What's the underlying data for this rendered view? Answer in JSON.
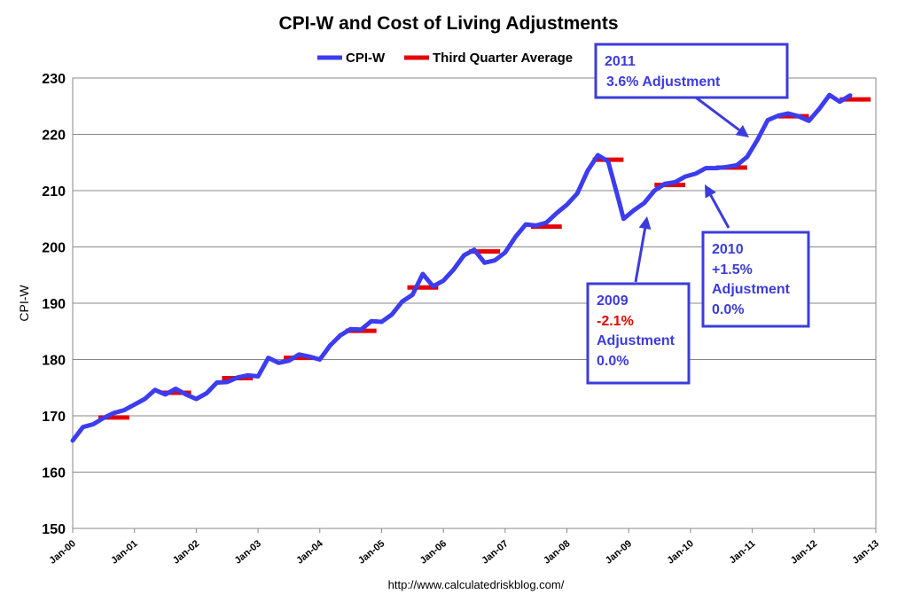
{
  "chart_data": {
    "type": "line",
    "title": "CPI-W and Cost of Living Adjustments",
    "ylabel": "CPI-W",
    "xlabel": "",
    "ylim": [
      150,
      230
    ],
    "yticks": [
      150,
      160,
      170,
      180,
      190,
      200,
      210,
      220,
      230
    ],
    "xticks": [
      "Jan-00",
      "Jan-01",
      "Jan-02",
      "Jan-03",
      "Jan-04",
      "Jan-05",
      "Jan-06",
      "Jan-07",
      "Jan-08",
      "Jan-09",
      "Jan-10",
      "Jan-11",
      "Jan-12",
      "Jan-13"
    ],
    "grid": "horizontal",
    "legend": "top-center",
    "source": "http://www.calculatedriskblog.com/",
    "series": [
      {
        "name": "CPI-W",
        "color": "#3c3cf0",
        "points": [
          [
            "2000-01",
            165.6
          ],
          [
            "2000-03",
            168.0
          ],
          [
            "2000-05",
            168.5
          ],
          [
            "2000-07",
            169.6
          ],
          [
            "2000-09",
            170.5
          ],
          [
            "2000-11",
            171.0
          ],
          [
            "2001-01",
            172.0
          ],
          [
            "2001-03",
            173.0
          ],
          [
            "2001-05",
            174.6
          ],
          [
            "2001-07",
            173.8
          ],
          [
            "2001-09",
            174.8
          ],
          [
            "2001-11",
            173.8
          ],
          [
            "2002-01",
            173.0
          ],
          [
            "2002-03",
            174.0
          ],
          [
            "2002-05",
            175.9
          ],
          [
            "2002-07",
            176.0
          ],
          [
            "2002-09",
            176.8
          ],
          [
            "2002-11",
            177.2
          ],
          [
            "2003-01",
            177.0
          ],
          [
            "2003-03",
            180.3
          ],
          [
            "2003-05",
            179.4
          ],
          [
            "2003-07",
            179.8
          ],
          [
            "2003-09",
            180.9
          ],
          [
            "2003-11",
            180.5
          ],
          [
            "2004-01",
            180.0
          ],
          [
            "2004-03",
            182.5
          ],
          [
            "2004-05",
            184.3
          ],
          [
            "2004-07",
            185.4
          ],
          [
            "2004-09",
            185.3
          ],
          [
            "2004-11",
            186.8
          ],
          [
            "2005-01",
            186.7
          ],
          [
            "2005-03",
            188.0
          ],
          [
            "2005-05",
            190.3
          ],
          [
            "2005-07",
            191.5
          ],
          [
            "2005-09",
            195.2
          ],
          [
            "2005-11",
            193.0
          ],
          [
            "2006-01",
            194.0
          ],
          [
            "2006-03",
            196.0
          ],
          [
            "2006-05",
            198.5
          ],
          [
            "2006-07",
            199.5
          ],
          [
            "2006-09",
            197.2
          ],
          [
            "2006-11",
            197.6
          ],
          [
            "2007-01",
            199.0
          ],
          [
            "2007-03",
            201.8
          ],
          [
            "2007-05",
            204.0
          ],
          [
            "2007-07",
            203.8
          ],
          [
            "2007-09",
            204.3
          ],
          [
            "2007-11",
            206.0
          ],
          [
            "2008-01",
            207.5
          ],
          [
            "2008-03",
            209.5
          ],
          [
            "2008-05",
            213.5
          ],
          [
            "2008-07",
            216.3
          ],
          [
            "2008-09",
            215.2
          ],
          [
            "2008-11",
            208.5
          ],
          [
            "2008-12",
            205.0
          ],
          [
            "2009-02",
            206.5
          ],
          [
            "2009-04",
            207.8
          ],
          [
            "2009-06",
            210.0
          ],
          [
            "2009-08",
            211.2
          ],
          [
            "2009-10",
            211.5
          ],
          [
            "2009-12",
            212.5
          ],
          [
            "2010-02",
            213.0
          ],
          [
            "2010-04",
            214.0
          ],
          [
            "2010-06",
            214.0
          ],
          [
            "2010-08",
            214.2
          ],
          [
            "2010-10",
            214.5
          ],
          [
            "2010-12",
            216.0
          ],
          [
            "2011-02",
            219.0
          ],
          [
            "2011-04",
            222.5
          ],
          [
            "2011-06",
            223.3
          ],
          [
            "2011-08",
            223.7
          ],
          [
            "2011-10",
            223.2
          ],
          [
            "2011-12",
            222.4
          ],
          [
            "2012-02",
            224.5
          ],
          [
            "2012-04",
            227.0
          ],
          [
            "2012-06",
            225.8
          ],
          [
            "2012-08",
            226.9
          ]
        ]
      },
      {
        "name": "Third Quarter Average",
        "color": "#e60000",
        "segments": [
          {
            "from": "2000-06",
            "to": "2000-12",
            "value": 169.7
          },
          {
            "from": "2001-06",
            "to": "2001-12",
            "value": 174.1
          },
          {
            "from": "2002-06",
            "to": "2002-12",
            "value": 176.7
          },
          {
            "from": "2003-06",
            "to": "2003-12",
            "value": 180.3
          },
          {
            "from": "2004-06",
            "to": "2004-12",
            "value": 185.1
          },
          {
            "from": "2005-06",
            "to": "2005-12",
            "value": 192.8
          },
          {
            "from": "2006-06",
            "to": "2006-12",
            "value": 199.2
          },
          {
            "from": "2007-06",
            "to": "2007-12",
            "value": 203.6
          },
          {
            "from": "2008-06",
            "to": "2008-12",
            "value": 215.5
          },
          {
            "from": "2009-06",
            "to": "2009-12",
            "value": 211.0
          },
          {
            "from": "2010-06",
            "to": "2010-12",
            "value": 214.1
          },
          {
            "from": "2011-06",
            "to": "2011-12",
            "value": 223.2
          },
          {
            "from": "2012-06",
            "to": "2012-12",
            "value": 226.2
          }
        ]
      }
    ],
    "annotations": [
      {
        "year_label": "2011",
        "change": "3.6% Adjustment",
        "change_negative": false,
        "pointer": [
          "2011-01",
          219.0
        ]
      },
      {
        "year_label": "2010",
        "change": "+1.5%",
        "change_negative": false,
        "line2": "Adjustment",
        "line3": "0.0%",
        "pointer": [
          "2010-03",
          211.5
        ]
      },
      {
        "year_label": "2009",
        "change": "-2.1%",
        "change_negative": true,
        "line2": "Adjustment",
        "line3": "0.0%",
        "pointer": [
          "2009-05",
          206.5
        ]
      }
    ]
  }
}
